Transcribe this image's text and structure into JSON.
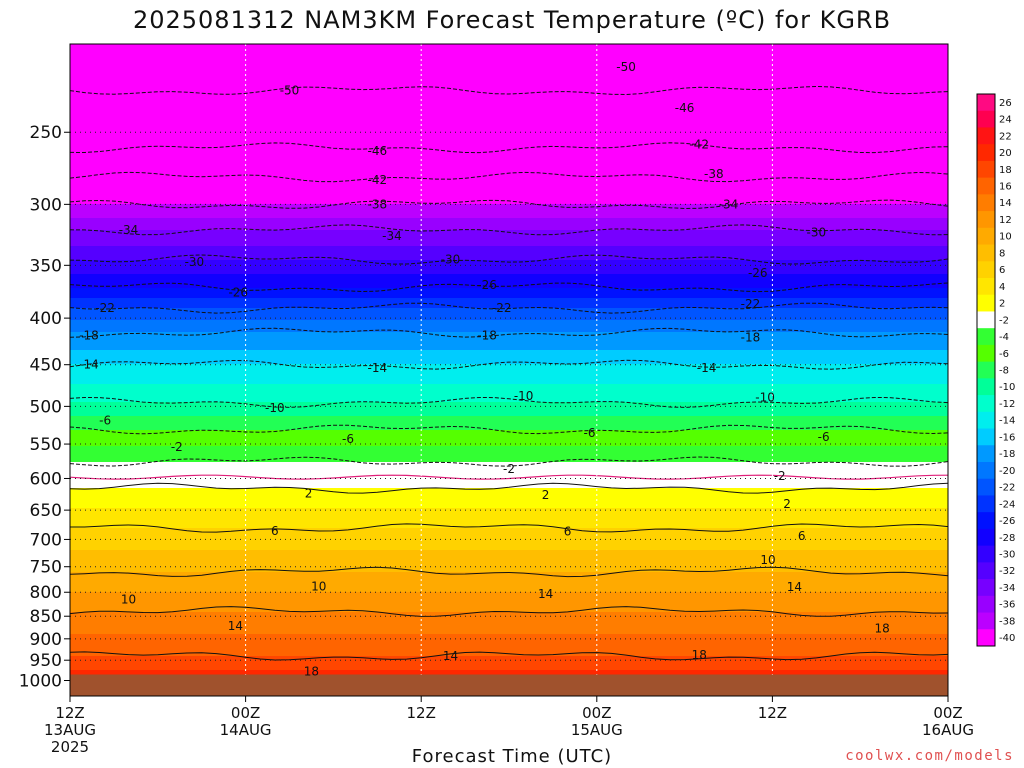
{
  "title": "2025081312 NAM3KM Forecast Temperature (ºC) for KGRB",
  "xaxis_title": "Forecast Time (UTC)",
  "credit": "coolwx.com/models",
  "colors": {
    "ground": "#a0522d",
    "freezing_line": "#e0207a"
  },
  "chart_data": {
    "type": "heatmap",
    "title": "2025081312 NAM3KM Forecast Temperature (ºC) for KGRB",
    "xlabel": "Forecast Time (UTC)",
    "ylabel": "",
    "y_scale": "log",
    "ylim": [
      1040,
      200
    ],
    "y_ticks": [
      250,
      300,
      350,
      400,
      450,
      500,
      550,
      600,
      650,
      700,
      750,
      800,
      850,
      900,
      950,
      1000
    ],
    "x_hours": [
      0,
      60
    ],
    "x_ticks": [
      {
        "hour": 0,
        "lines": [
          "12Z",
          "13AUG",
          "2025"
        ]
      },
      {
        "hour": 12,
        "lines": [
          "00Z",
          "14AUG"
        ]
      },
      {
        "hour": 24,
        "lines": [
          "12Z"
        ]
      },
      {
        "hour": 36,
        "lines": [
          "00Z",
          "15AUG"
        ]
      },
      {
        "hour": 48,
        "lines": [
          "12Z"
        ]
      },
      {
        "hour": 60,
        "lines": [
          "00Z",
          "16AUG"
        ]
      }
    ],
    "colorbar": [
      26,
      24,
      22,
      20,
      18,
      16,
      14,
      12,
      10,
      8,
      6,
      4,
      2,
      -2,
      -4,
      -6,
      -8,
      -10,
      -12,
      -14,
      -16,
      -18,
      -20,
      -22,
      -24,
      -26,
      -28,
      -30,
      -32,
      -34,
      -36,
      -38,
      -40
    ],
    "colorbar_colors": [
      "#ff0a82",
      "#ff0050",
      "#ff1414",
      "#ff2800",
      "#ff4600",
      "#ff6400",
      "#ff7d00",
      "#ff9600",
      "#ffaa00",
      "#ffbe00",
      "#ffd200",
      "#ffe600",
      "#ffff00",
      "#ffffff",
      "#33ff33",
      "#55ff00",
      "#22ff55",
      "#00ff99",
      "#00ffcc",
      "#00eeee",
      "#00ccff",
      "#0099ff",
      "#0077ff",
      "#0055ff",
      "#0033ff",
      "#0011ff",
      "#1100ff",
      "#3300ff",
      "#5500ff",
      "#7700ff",
      "#9900ff",
      "#bb00ff",
      "#ff00ff"
    ],
    "temperature_profile": [
      {
        "p": 225,
        "t": -50
      },
      {
        "p": 260,
        "t": -46
      },
      {
        "p": 280,
        "t": -42
      },
      {
        "p": 300,
        "t": -38
      },
      {
        "p": 320,
        "t": -34
      },
      {
        "p": 345,
        "t": -30
      },
      {
        "p": 370,
        "t": -26
      },
      {
        "p": 390,
        "t": -22
      },
      {
        "p": 415,
        "t": -18
      },
      {
        "p": 450,
        "t": -14
      },
      {
        "p": 495,
        "t": -10
      },
      {
        "p": 530,
        "t": -6
      },
      {
        "p": 575,
        "t": -2
      },
      {
        "p": 615,
        "t": 2
      },
      {
        "p": 680,
        "t": 6
      },
      {
        "p": 760,
        "t": 10
      },
      {
        "p": 840,
        "t": 14
      },
      {
        "p": 940,
        "t": 18
      }
    ],
    "contour_labels": [
      {
        "text": "-50",
        "hour": 15,
        "p": 225
      },
      {
        "text": "-50",
        "hour": 38,
        "p": 212
      },
      {
        "text": "-46",
        "hour": 21,
        "p": 262
      },
      {
        "text": "-46",
        "hour": 42,
        "p": 235
      },
      {
        "text": "-42",
        "hour": 21,
        "p": 282
      },
      {
        "text": "-42",
        "hour": 43,
        "p": 258
      },
      {
        "text": "-38",
        "hour": 21,
        "p": 300
      },
      {
        "text": "-38",
        "hour": 44,
        "p": 278
      },
      {
        "text": "-34",
        "hour": 4,
        "p": 320
      },
      {
        "text": "-34",
        "hour": 22,
        "p": 325
      },
      {
        "text": "-34",
        "hour": 45,
        "p": 300
      },
      {
        "text": "-30",
        "hour": 8.5,
        "p": 347
      },
      {
        "text": "-30",
        "hour": 26,
        "p": 345
      },
      {
        "text": "-30",
        "hour": 51,
        "p": 322
      },
      {
        "text": "-26",
        "hour": 11.5,
        "p": 375
      },
      {
        "text": "-26",
        "hour": 28.5,
        "p": 368
      },
      {
        "text": "-26",
        "hour": 47,
        "p": 357
      },
      {
        "text": "-22",
        "hour": 2.4,
        "p": 390
      },
      {
        "text": "-22",
        "hour": 29.5,
        "p": 390
      },
      {
        "text": "-22",
        "hour": 46.5,
        "p": 386
      },
      {
        "text": "-18",
        "hour": 1.3,
        "p": 418
      },
      {
        "text": "-18",
        "hour": 28.5,
        "p": 418
      },
      {
        "text": "-18",
        "hour": 46.5,
        "p": 420
      },
      {
        "text": "-14",
        "hour": 1.3,
        "p": 450
      },
      {
        "text": "-14",
        "hour": 21,
        "p": 454
      },
      {
        "text": "-14",
        "hour": 43.5,
        "p": 454
      },
      {
        "text": "-10",
        "hour": 14,
        "p": 502
      },
      {
        "text": "-10",
        "hour": 31,
        "p": 487
      },
      {
        "text": "-10",
        "hour": 47.5,
        "p": 489
      },
      {
        "text": "-6",
        "hour": 2.4,
        "p": 518
      },
      {
        "text": "-6",
        "hour": 19,
        "p": 543
      },
      {
        "text": "-6",
        "hour": 35.5,
        "p": 535
      },
      {
        "text": "-6",
        "hour": 51.5,
        "p": 540
      },
      {
        "text": "-2",
        "hour": 7.3,
        "p": 554
      },
      {
        "text": "-2",
        "hour": 30,
        "p": 586
      },
      {
        "text": "-2",
        "hour": 48.5,
        "p": 596
      },
      {
        "text": "2",
        "hour": 16.3,
        "p": 623
      },
      {
        "text": "2",
        "hour": 32.5,
        "p": 626
      },
      {
        "text": "2",
        "hour": 49,
        "p": 640
      },
      {
        "text": "6",
        "hour": 14,
        "p": 685
      },
      {
        "text": "6",
        "hour": 34,
        "p": 686
      },
      {
        "text": "6",
        "hour": 50,
        "p": 694
      },
      {
        "text": "10",
        "hour": 17,
        "p": 788
      },
      {
        "text": "10",
        "hour": 4,
        "p": 815
      },
      {
        "text": "10",
        "hour": 47.7,
        "p": 737
      },
      {
        "text": "14",
        "hour": 11.3,
        "p": 871
      },
      {
        "text": "14",
        "hour": 32.5,
        "p": 804
      },
      {
        "text": "14",
        "hour": 49.5,
        "p": 789
      },
      {
        "text": "14",
        "hour": 26,
        "p": 940
      },
      {
        "text": "18",
        "hour": 16.5,
        "p": 978
      },
      {
        "text": "18",
        "hour": 43,
        "p": 937
      },
      {
        "text": "18",
        "hour": 55.5,
        "p": 877
      }
    ]
  }
}
